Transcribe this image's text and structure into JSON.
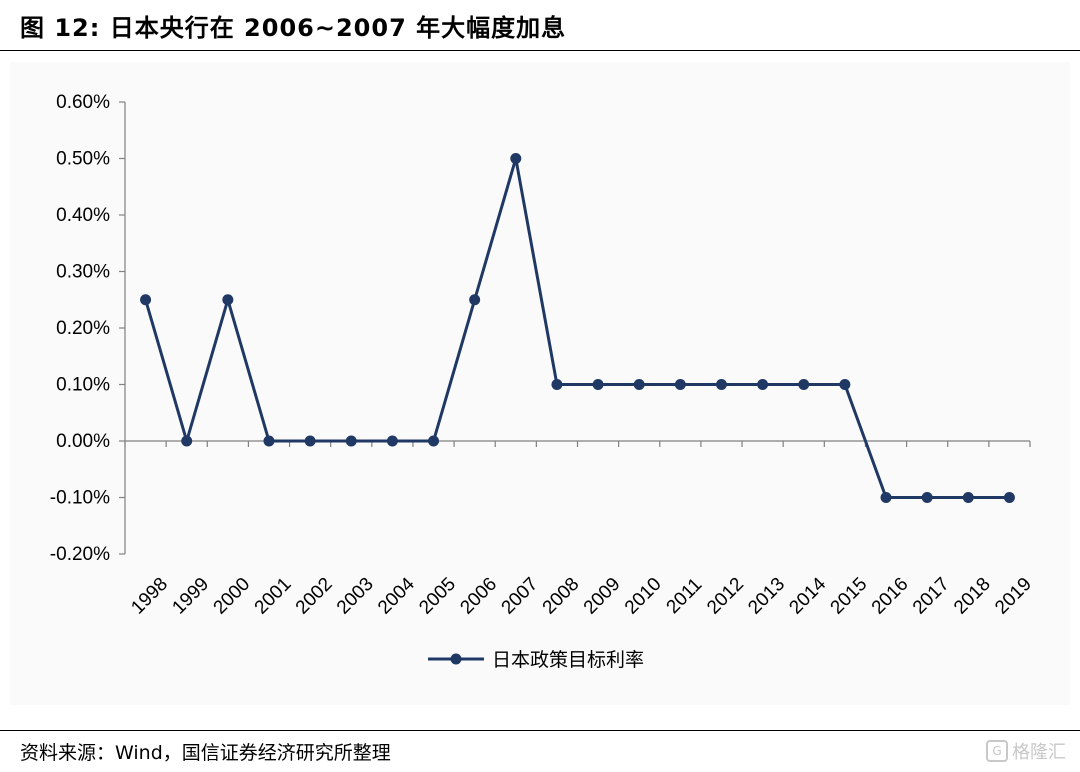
{
  "figure": {
    "title": "图 12:  日本央行在 2006~2007 年大幅度加息",
    "source": "资料来源：Wind，国信证券经济研究所整理",
    "watermark": "格隆汇"
  },
  "chart_data": {
    "type": "line",
    "title": "",
    "xlabel": "",
    "ylabel": "",
    "categories": [
      "1998",
      "1999",
      "2000",
      "2001",
      "2002",
      "2003",
      "2004",
      "2005",
      "2006",
      "2007",
      "2008",
      "2009",
      "2010",
      "2011",
      "2012",
      "2013",
      "2014",
      "2015",
      "2016",
      "2017",
      "2018",
      "2019"
    ],
    "series": [
      {
        "name": "日本政策目标利率",
        "values": [
          0.25,
          0.0,
          0.25,
          0.0,
          0.0,
          0.0,
          0.0,
          0.0,
          0.25,
          0.5,
          0.1,
          0.1,
          0.1,
          0.1,
          0.1,
          0.1,
          0.1,
          0.1,
          -0.1,
          -0.1,
          -0.1,
          -0.1
        ],
        "color": "#1f3864"
      }
    ],
    "ylim": [
      -0.2,
      0.6
    ],
    "yticks": [
      -0.2,
      -0.1,
      0.0,
      0.1,
      0.2,
      0.3,
      0.4,
      0.5,
      0.6
    ],
    "ytick_format": "percent-2dp",
    "grid": false,
    "legend": "bottom-center"
  }
}
